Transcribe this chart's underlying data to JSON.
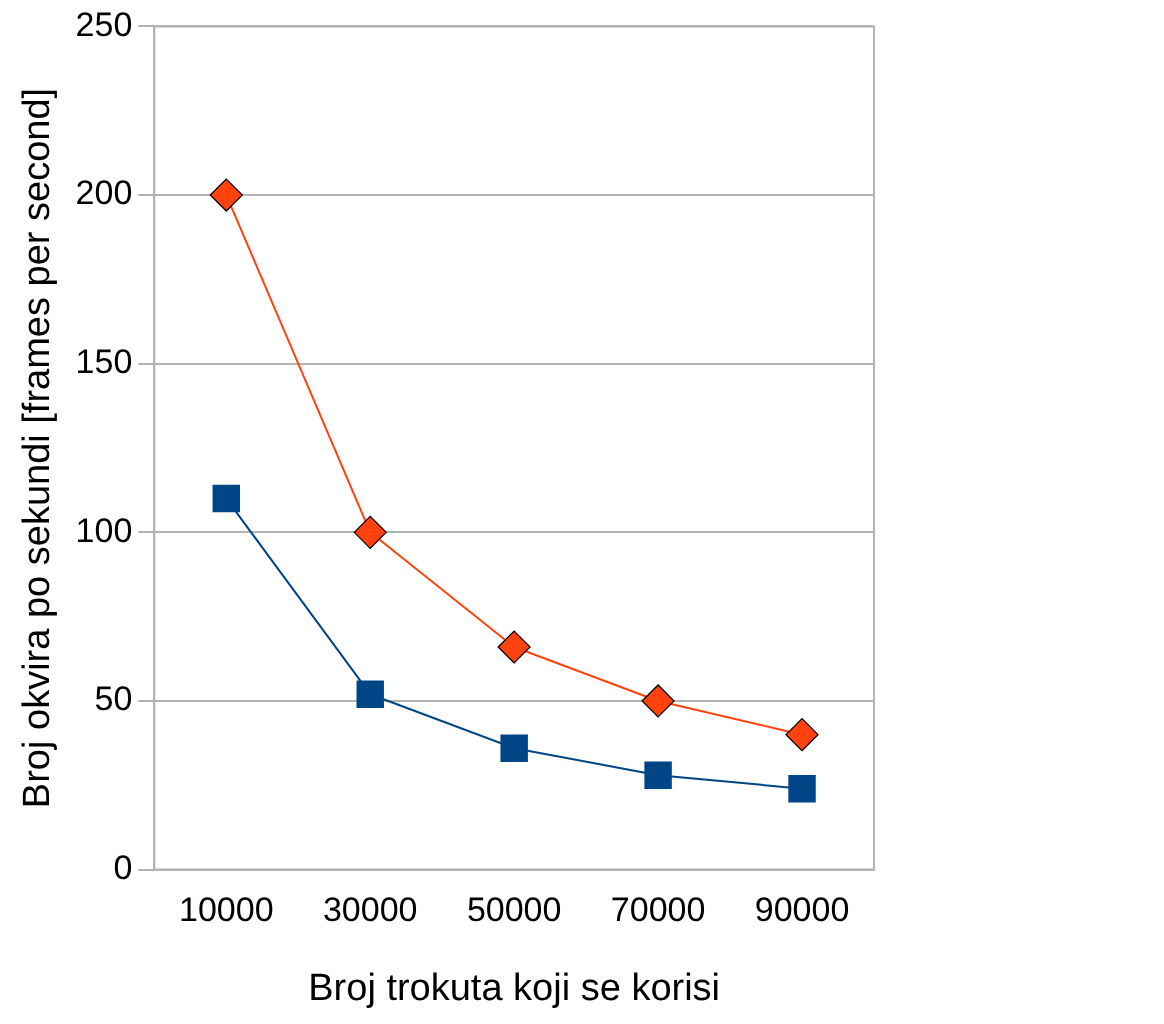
{
  "chart_data": {
    "type": "line",
    "xlabel": "Broj trokuta koji se korisi",
    "ylabel": "Broj okvira po sekundi [frames per second]",
    "categories": [
      "10000",
      "30000",
      "50000",
      "70000",
      "90000"
    ],
    "series": [
      {
        "color": "#004586",
        "marker": "square",
        "values": [
          110,
          52,
          36,
          28,
          24
        ]
      },
      {
        "color": "#ff420e",
        "marker": "diamond",
        "values": [
          200,
          100,
          66,
          50,
          40
        ]
      }
    ],
    "ylim": [
      0,
      250
    ],
    "yticks": [
      0,
      50,
      100,
      150,
      200,
      250
    ],
    "grid": "y",
    "legend": false,
    "line_style": "solid"
  }
}
